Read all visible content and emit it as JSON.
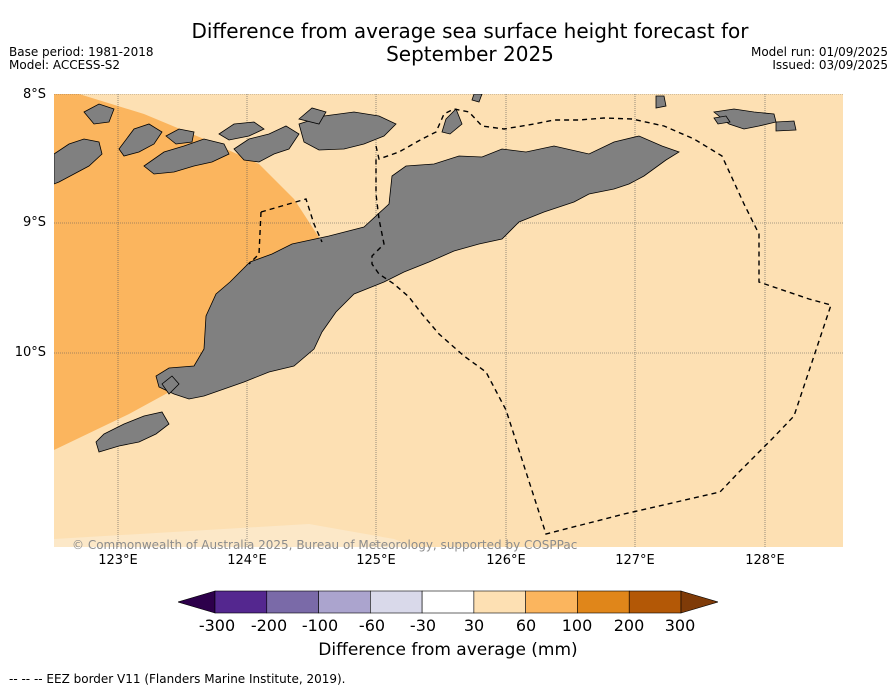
{
  "title_line1": "Difference from average sea surface height forecast for",
  "title_line2": "September 2025",
  "meta_left": {
    "base_period": "Base period: 1981-2018",
    "model": "Model: ACCESS-S2"
  },
  "meta_right": {
    "model_run": "Model run: 01/09/2025",
    "issued": "Issued: 03/09/2025"
  },
  "latitude_labels": [
    "8°S",
    "9°S",
    "10°S"
  ],
  "longitude_labels": [
    "123°E",
    "124°E",
    "125°E",
    "126°E",
    "127°E",
    "128°E"
  ],
  "copyright": "© Commonwealth of Australia 2025, Bureau of Meteorology, supported by COSPPac",
  "colorbar": {
    "label": "Difference from average (mm)",
    "ticks": [
      "-300",
      "-200",
      "-100",
      "-60",
      "-30",
      "30",
      "60",
      "100",
      "200",
      "300"
    ],
    "colors": [
      "#54278f",
      "#7a6aa8",
      "#aba4ce",
      "#d9d9ea",
      "#ffffff",
      "#fde0b3",
      "#fbb55e",
      "#e0861a",
      "#b35806"
    ],
    "under_color": "#2d004b",
    "over_color": "#7f3b08"
  },
  "legend_note": "--  --  -- EEZ border V11 (Flanders Marine Institute, 2019).",
  "colors": {
    "land": "#808080",
    "anomaly_30_60": "#fde0b3",
    "anomaly_60_100": "#fbb55e"
  }
}
